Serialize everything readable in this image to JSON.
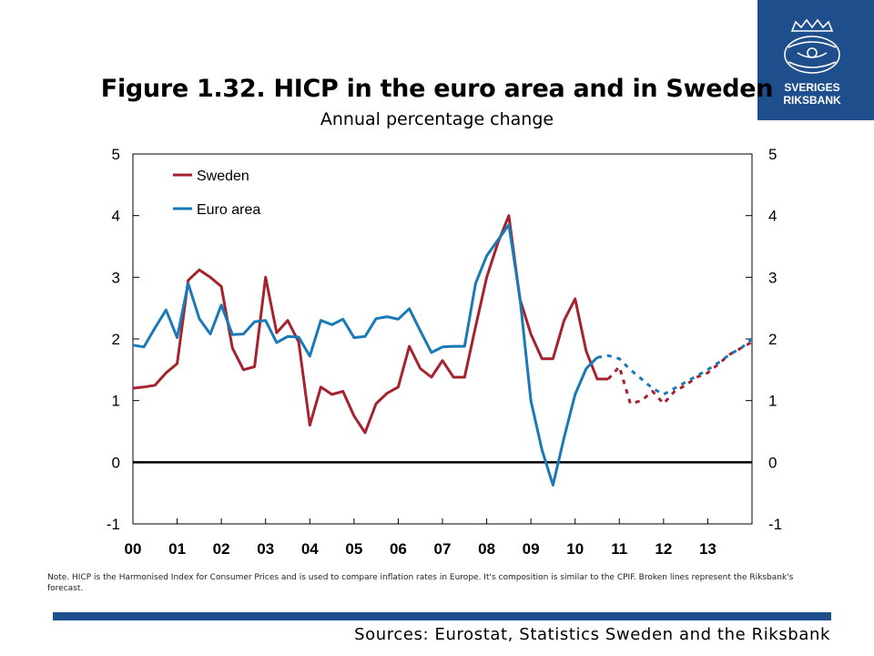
{
  "logo": {
    "text_line1": "SVERIGES",
    "text_line2": "RIKSBANK",
    "color": "#1f4e8c"
  },
  "header": {
    "title": "Figure 1.32. HICP in the euro area and in Sweden",
    "subtitle": "Annual percentage change"
  },
  "note": "Note. HICP is the Harmonised Index for Consumer Prices and is used to compare inflation rates in Europe. It's composition is similar to the CPIF. Broken lines represent the Riksbank's forecast.",
  "sources": "Sources: Eurostat, Statistics Sweden and the Riksbank",
  "chart_data": {
    "type": "line",
    "title": "Figure 1.32. HICP in the euro area and in Sweden",
    "subtitle": "Annual percentage change",
    "ylim": [
      -1,
      5
    ],
    "yticks": [
      -1,
      0,
      1,
      2,
      3,
      4,
      5
    ],
    "xlim": [
      2000.0,
      2014.0
    ],
    "xtick_labels": [
      "00",
      "01",
      "02",
      "03",
      "04",
      "05",
      "06",
      "07",
      "08",
      "09",
      "10",
      "11",
      "12",
      "13"
    ],
    "grid": false,
    "legend_position": "top-left",
    "colors": {
      "Sweden": "#a5232f",
      "Euro area": "#1a79b7"
    },
    "series": [
      {
        "name": "Sweden",
        "color": "#a5232f",
        "x": [
          2000.0,
          2000.25,
          2000.5,
          2000.75,
          2001.0,
          2001.25,
          2001.5,
          2001.75,
          2002.0,
          2002.25,
          2002.5,
          2002.75,
          2003.0,
          2003.25,
          2003.5,
          2003.75,
          2004.0,
          2004.25,
          2004.5,
          2004.75,
          2005.0,
          2005.25,
          2005.5,
          2005.75,
          2006.0,
          2006.25,
          2006.5,
          2006.75,
          2007.0,
          2007.25,
          2007.5,
          2007.75,
          2008.0,
          2008.25,
          2008.5,
          2008.75,
          2009.0,
          2009.25,
          2009.5,
          2009.75,
          2010.0,
          2010.25,
          2010.5,
          2010.75
        ],
        "y": [
          1.2,
          1.22,
          1.25,
          1.45,
          1.6,
          2.95,
          3.12,
          3.0,
          2.85,
          1.85,
          1.5,
          1.55,
          3.0,
          2.1,
          2.3,
          1.95,
          0.6,
          1.22,
          1.1,
          1.15,
          0.75,
          0.48,
          0.95,
          1.12,
          1.22,
          1.88,
          1.52,
          1.38,
          1.65,
          1.38,
          1.38,
          2.2,
          3.0,
          3.55,
          4.0,
          2.65,
          2.08,
          1.68,
          1.68,
          2.3,
          2.65,
          1.8,
          1.35,
          1.35
        ]
      },
      {
        "name": "Sweden forecast",
        "color": "#a5232f",
        "dashed": true,
        "x": [
          2010.75,
          2011.0,
          2011.25,
          2011.5,
          2011.75,
          2012.0,
          2012.25,
          2012.5,
          2012.75,
          2013.0,
          2013.25,
          2013.5,
          2013.75,
          2014.0
        ],
        "y": [
          1.35,
          1.55,
          0.95,
          1.0,
          1.15,
          0.95,
          1.15,
          1.25,
          1.38,
          1.45,
          1.6,
          1.75,
          1.85,
          1.95
        ]
      },
      {
        "name": "Euro area",
        "color": "#1a79b7",
        "x": [
          2000.0,
          2000.25,
          2000.5,
          2000.75,
          2001.0,
          2001.25,
          2001.5,
          2001.75,
          2002.0,
          2002.25,
          2002.5,
          2002.75,
          2003.0,
          2003.25,
          2003.5,
          2003.75,
          2004.0,
          2004.25,
          2004.5,
          2004.75,
          2005.0,
          2005.25,
          2005.5,
          2005.75,
          2006.0,
          2006.25,
          2006.5,
          2006.75,
          2007.0,
          2007.25,
          2007.5,
          2007.75,
          2008.0,
          2008.25,
          2008.5,
          2008.75,
          2009.0,
          2009.25,
          2009.5,
          2009.75,
          2010.0,
          2010.25,
          2010.5
        ],
        "y": [
          1.9,
          1.87,
          2.18,
          2.47,
          2.02,
          2.9,
          2.33,
          2.08,
          2.55,
          2.07,
          2.08,
          2.28,
          2.3,
          1.94,
          2.04,
          2.03,
          1.72,
          2.3,
          2.23,
          2.32,
          2.02,
          2.04,
          2.33,
          2.36,
          2.32,
          2.49,
          2.13,
          1.78,
          1.87,
          1.88,
          1.88,
          2.9,
          3.35,
          3.6,
          3.85,
          2.68,
          1.0,
          0.2,
          -0.37,
          0.4,
          1.1,
          1.52,
          1.7
        ]
      },
      {
        "name": "Euro area forecast",
        "color": "#1a79b7",
        "dashed": true,
        "x": [
          2010.5,
          2010.75,
          2011.0,
          2011.25,
          2011.5,
          2011.75,
          2012.0,
          2012.25,
          2012.5,
          2012.75,
          2013.0,
          2013.25,
          2013.5,
          2013.75,
          2014.0
        ],
        "y": [
          1.7,
          1.73,
          1.68,
          1.5,
          1.35,
          1.2,
          1.1,
          1.2,
          1.3,
          1.4,
          1.5,
          1.62,
          1.75,
          1.85,
          2.0
        ]
      }
    ],
    "legend": [
      {
        "label": "Sweden",
        "color": "#a5232f"
      },
      {
        "label": "Euro area",
        "color": "#1a79b7"
      }
    ]
  }
}
